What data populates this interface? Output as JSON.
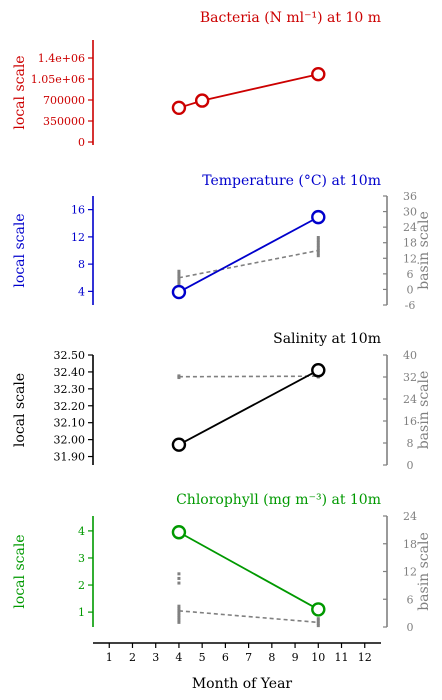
{
  "figure": {
    "xlabel": "Month of Year",
    "x_ticks": [
      1,
      2,
      3,
      4,
      5,
      6,
      7,
      8,
      9,
      10,
      11,
      12
    ],
    "xlim": [
      0.3,
      12.7
    ],
    "local_scale_label": "local scale",
    "basin_scale_label": "basin scale"
  },
  "chart_data": [
    {
      "type": "line",
      "title": "Bacteria (N ml⁻¹) at 10 m",
      "color": "#cc0000",
      "ylabel": "local scale",
      "ylim": [
        -50000,
        1700000
      ],
      "y_ticks": [
        0,
        350000,
        700000,
        1050000,
        1400000
      ],
      "y_tick_labels": [
        "0",
        "350000",
        "700000",
        "1.05e+06",
        "1.4e+06"
      ],
      "series": [
        {
          "x": [
            4,
            5,
            10
          ],
          "values": [
            570000,
            690000,
            1130000
          ]
        }
      ]
    },
    {
      "type": "line",
      "title": "Temperature (°C) at 10m",
      "color": "#0000cc",
      "ylabel": "local scale",
      "ylim": [
        2.0,
        18.0
      ],
      "y_ticks": [
        4,
        8,
        12,
        16
      ],
      "y_tick_labels": [
        "4",
        "8",
        "12",
        "16"
      ],
      "series": [
        {
          "x": [
            4,
            10
          ],
          "values": [
            3.9,
            14.9
          ]
        }
      ],
      "basin": {
        "label": "basin scale",
        "ylim": [
          -6,
          36
        ],
        "y_ticks": [
          -6,
          0,
          6,
          12,
          18,
          24,
          30,
          36
        ],
        "y_tick_labels": [
          "-6",
          "0",
          "6",
          "12",
          "18",
          "24",
          "30",
          "36"
        ],
        "mean": {
          "x": [
            4,
            10
          ],
          "values": [
            4.5,
            15
          ]
        },
        "points": [
          {
            "x": 4,
            "values": [
              2,
              3,
              4,
              5,
              6,
              7
            ]
          },
          {
            "x": 10,
            "values": [
              13,
              14,
              15,
              16,
              17,
              18,
              19,
              20
            ]
          }
        ]
      }
    },
    {
      "type": "line",
      "title": "Salinity at 10m",
      "color": "#000000",
      "ylabel": "local scale",
      "ylim": [
        31.85,
        32.5
      ],
      "y_ticks": [
        31.9,
        32.0,
        32.1,
        32.2,
        32.3,
        32.4,
        32.5
      ],
      "y_tick_labels": [
        "31.90",
        "32.00",
        "32.10",
        "32.20",
        "32.30",
        "32.40",
        "32.50"
      ],
      "series": [
        {
          "x": [
            4,
            10
          ],
          "values": [
            31.97,
            32.41
          ]
        }
      ],
      "basin": {
        "label": "basin scale",
        "ylim": [
          0,
          40
        ],
        "y_ticks": [
          0,
          8,
          16,
          24,
          32,
          40
        ],
        "y_tick_labels": [
          "0",
          "8",
          "16",
          "24",
          "32",
          "40"
        ],
        "mean": {
          "x": [
            4,
            10
          ],
          "values": [
            32.1,
            32.3
          ]
        },
        "points": [
          {
            "x": 4,
            "values": [
              31.8,
              32.1,
              32.4
            ]
          },
          {
            "x": 10,
            "values": [
              32.0,
              32.4
            ]
          }
        ]
      }
    },
    {
      "type": "line",
      "title": "Chlorophyll (mg m⁻³) at 10m",
      "color": "#009900",
      "ylabel": "local scale",
      "ylim": [
        0.45,
        4.55
      ],
      "y_ticks": [
        1,
        2,
        3,
        4
      ],
      "y_tick_labels": [
        "1",
        "2",
        "3",
        "4"
      ],
      "series": [
        {
          "x": [
            4,
            10
          ],
          "values": [
            3.95,
            1.1
          ]
        }
      ],
      "basin": {
        "label": "basin scale",
        "ylim": [
          0,
          24
        ],
        "y_ticks": [
          0,
          6,
          12,
          18,
          24
        ],
        "y_tick_labels": [
          "0",
          "6",
          "12",
          "18",
          "24"
        ],
        "mean": {
          "x": [
            4,
            10
          ],
          "values": [
            3.5,
            1.0
          ]
        },
        "points": [
          {
            "x": 4,
            "values": [
              1,
              1.5,
              2,
              2.5,
              3,
              3.5,
              4,
              4.5,
              9.5,
              10.5,
              11.5
            ]
          },
          {
            "x": 10,
            "values": [
              0.3,
              0.8,
              1.3,
              1.8
            ]
          }
        ]
      }
    }
  ]
}
